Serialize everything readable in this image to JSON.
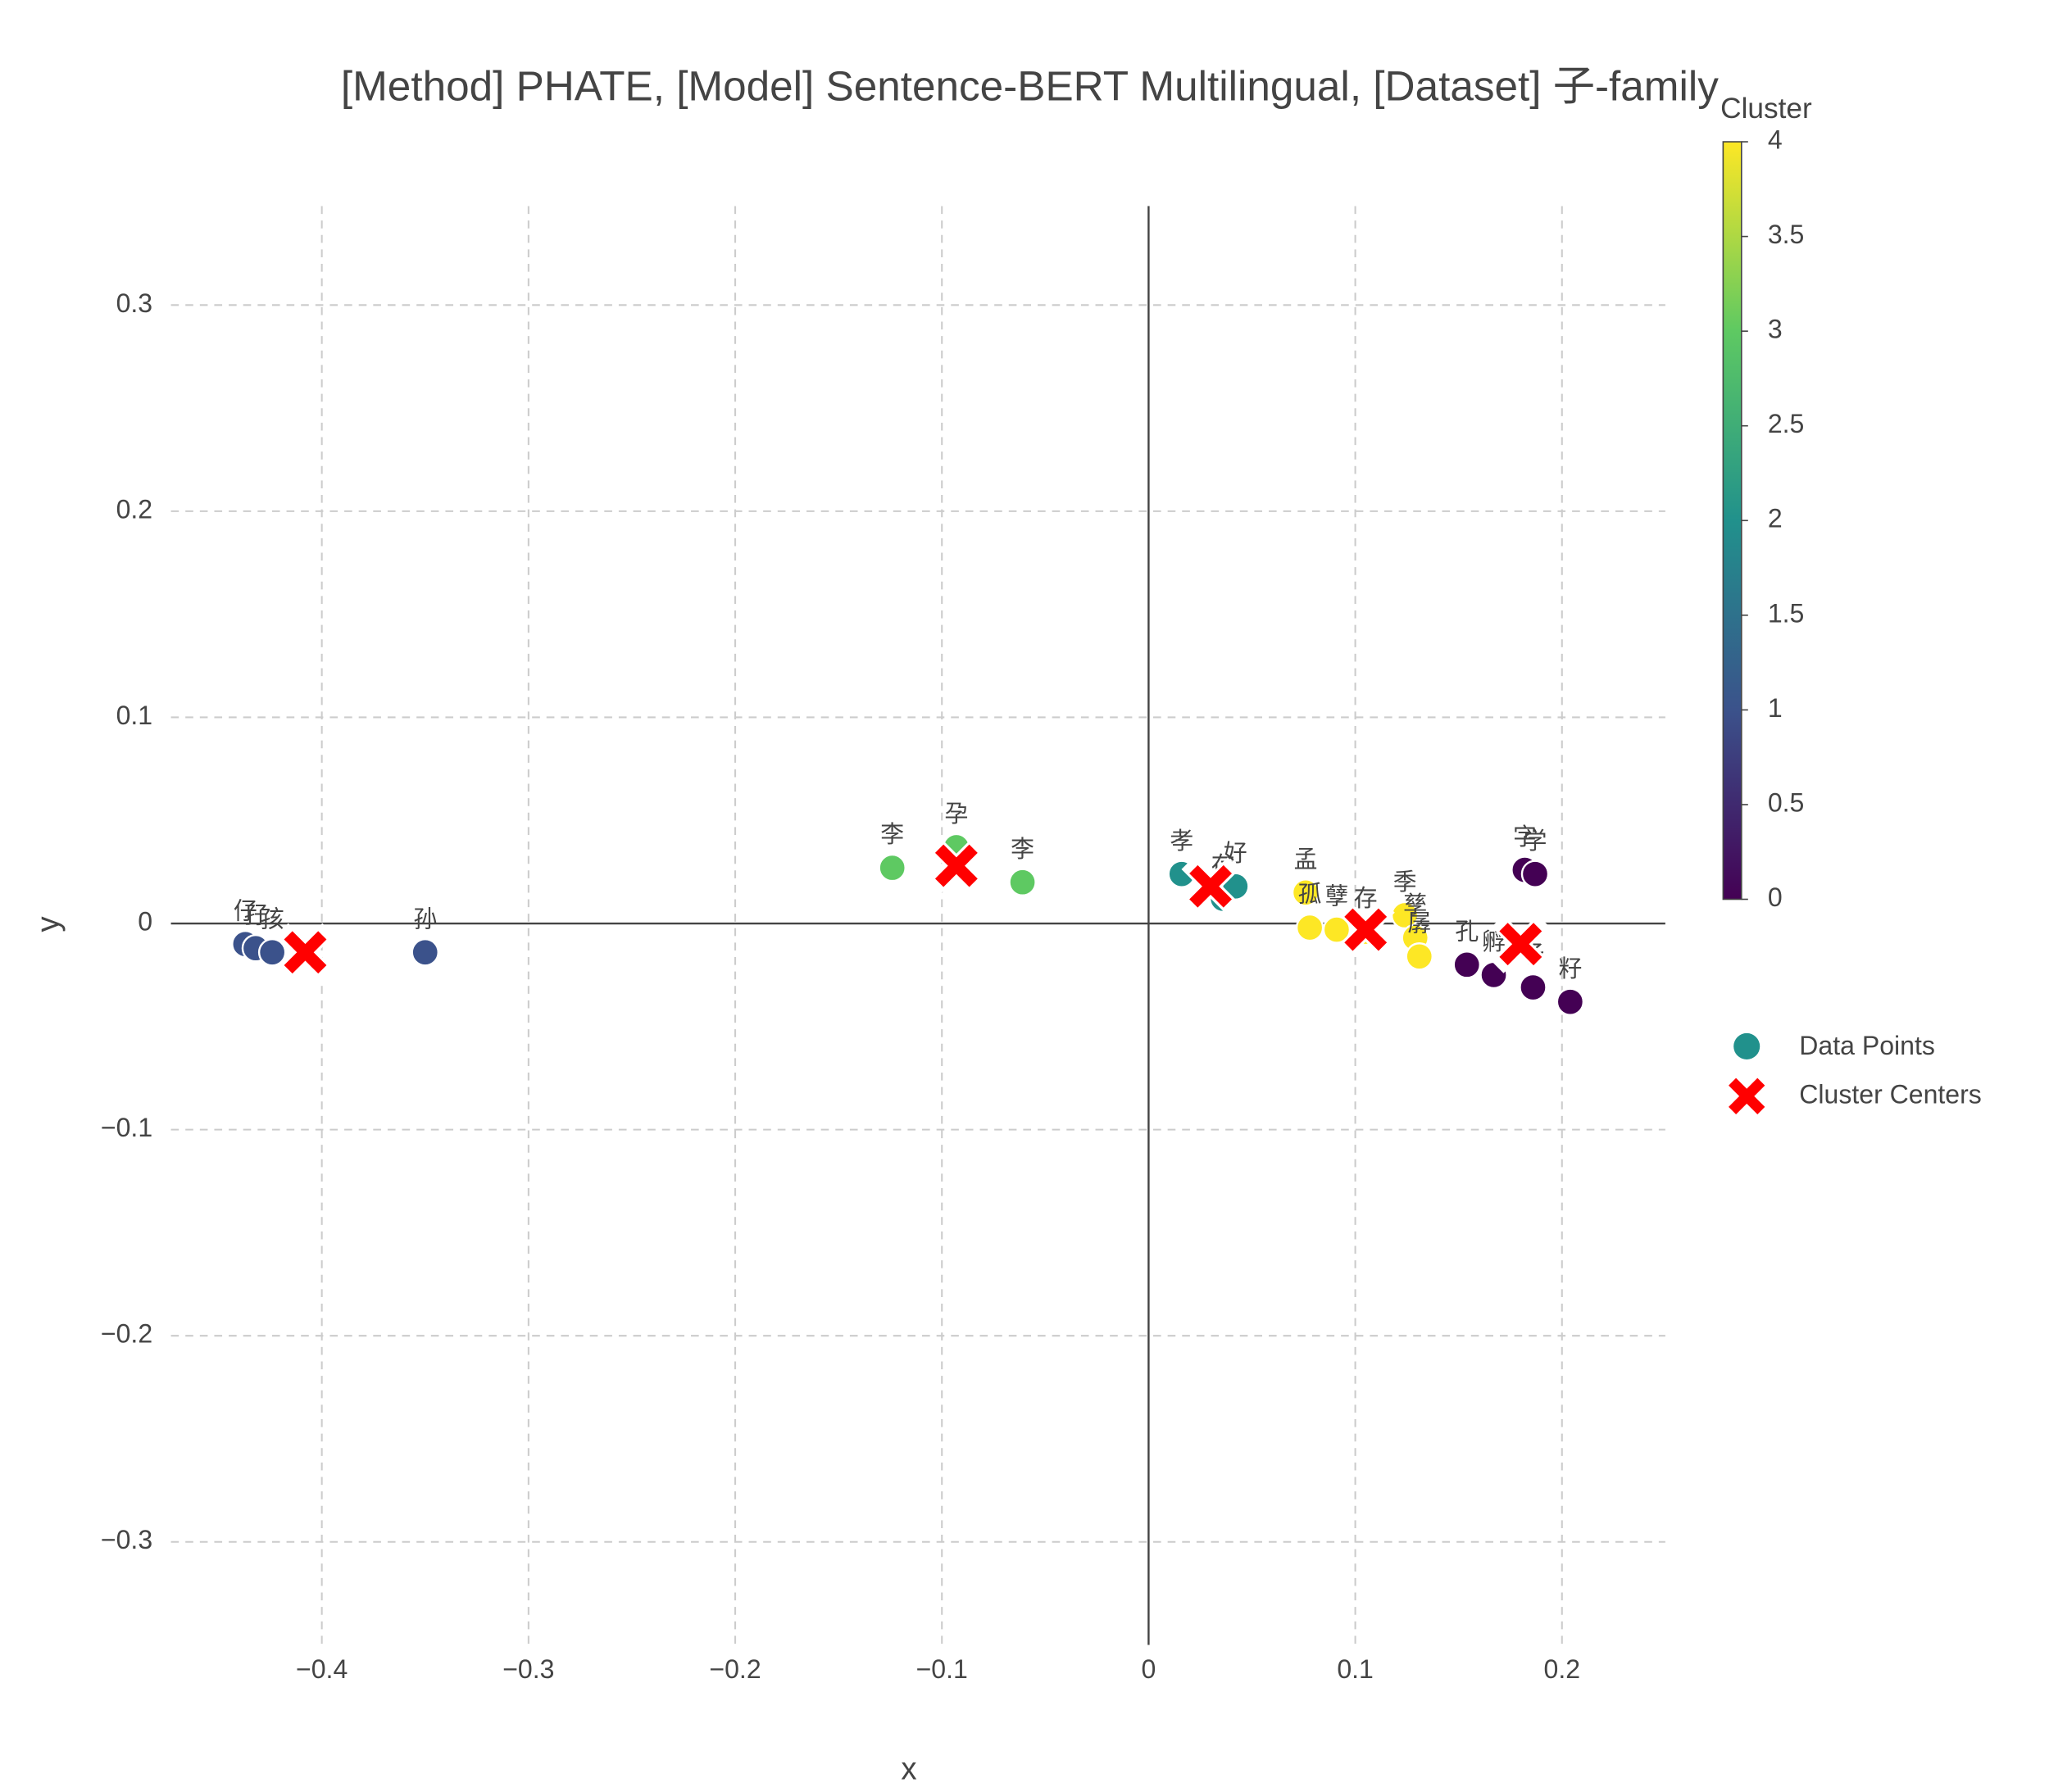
{
  "chart_data": {
    "type": "scatter",
    "title": "[Method] PHATE, [Model] Sentence-BERT Multilingual, [Dataset] 子-family",
    "x_label": "x",
    "y_label": "y",
    "xlim": [
      -0.473,
      0.25
    ],
    "ylim": [
      -0.35,
      0.348
    ],
    "xticks": [
      {
        "value": -0.4,
        "label": "−0.4"
      },
      {
        "value": -0.3,
        "label": "−0.3"
      },
      {
        "value": -0.2,
        "label": "−0.2"
      },
      {
        "value": -0.1,
        "label": "−0.1"
      },
      0,
      0.1,
      0.2
    ],
    "yticks": [
      {
        "value": -0.3,
        "label": "−0.3"
      },
      {
        "value": -0.2,
        "label": "−0.2"
      },
      {
        "value": -0.1,
        "label": "−0.1"
      },
      0,
      0.1,
      0.2,
      0.3
    ],
    "grid": true,
    "colorbar": {
      "title": "Cluster",
      "clim": [
        0,
        4
      ],
      "ticks": [
        0,
        0.5,
        1,
        1.5,
        2,
        2.5,
        3,
        3.5,
        4
      ],
      "colorscale": [
        "#440154",
        "#3b528b",
        "#21918c",
        "#5ec962",
        "#fde725"
      ]
    },
    "series": [
      {
        "name": "Data Points",
        "color": "#21918c",
        "x": [
          -0.437,
          -0.432,
          -0.424,
          -0.35,
          -0.124,
          -0.093,
          -0.061,
          0.016,
          0.036,
          0.042,
          0.076,
          0.078,
          0.091,
          0.105,
          0.124,
          0.129,
          0.131,
          0.154,
          0.167,
          0.182,
          0.187,
          0.186,
          0.204
        ],
        "y": [
          -0.01,
          -0.012,
          -0.014,
          -0.014,
          0.027,
          0.037,
          0.02,
          0.024,
          0.012,
          0.018,
          0.015,
          -0.002,
          -0.003,
          -0.004,
          0.004,
          -0.007,
          -0.016,
          -0.02,
          -0.025,
          0.026,
          0.024,
          -0.031,
          -0.038
        ],
        "cluster": [
          1,
          1,
          1,
          1,
          3,
          3,
          3,
          2,
          2,
          2,
          4,
          4,
          4,
          4,
          4,
          4,
          4,
          0,
          0,
          0,
          0,
          0,
          0
        ],
        "labels": [
          "仔",
          "孖",
          "孩",
          "孙",
          "李",
          "孕",
          "李",
          "孝",
          "存",
          "好",
          "孟",
          "孤",
          "孽",
          "存",
          "季",
          "孳",
          "孱",
          "孔",
          "孵",
          "字",
          "学",
          "孑",
          "籽"
        ]
      },
      {
        "name": "Cluster Centers",
        "color": "#ff0000",
        "x": [
          -0.408,
          -0.093,
          0.03,
          0.105,
          0.18
        ],
        "y": [
          -0.014,
          0.028,
          0.018,
          -0.003,
          -0.01
        ]
      }
    ]
  }
}
